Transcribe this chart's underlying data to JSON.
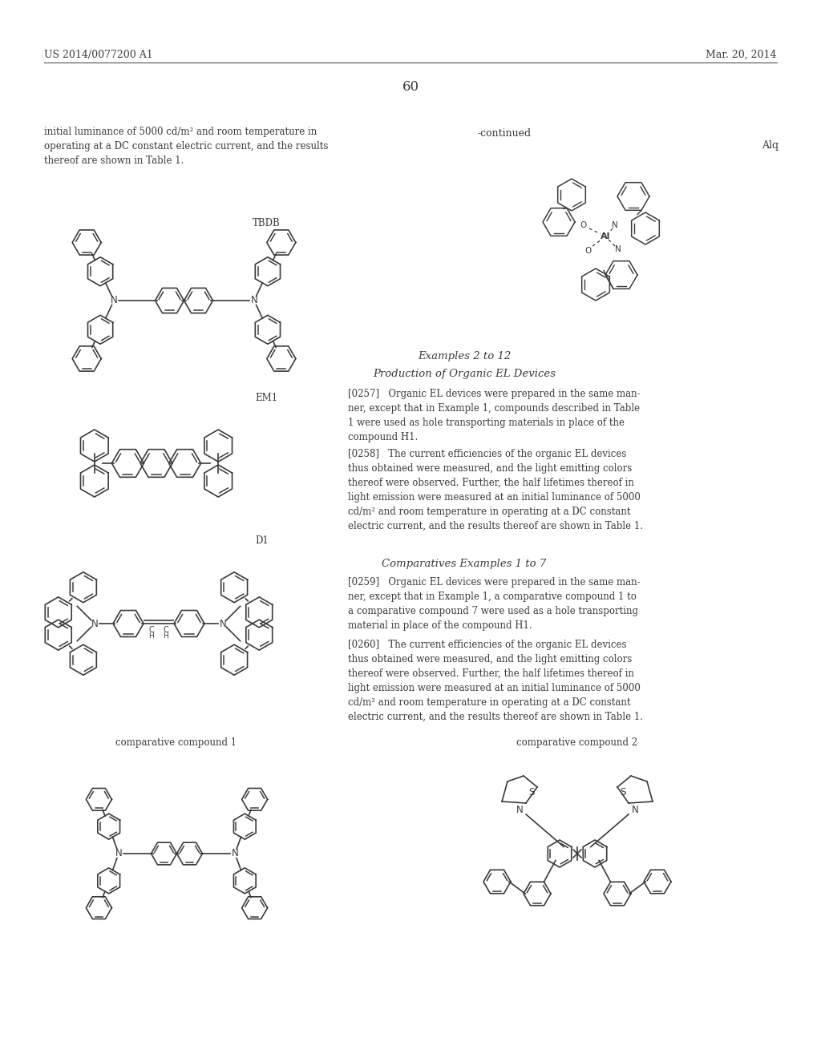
{
  "bg_color": "#ffffff",
  "header_left": "US 2014/0077200 A1",
  "header_right": "Mar. 20, 2014",
  "page_number": "60",
  "continued_label": "-continued",
  "alq_label": "Alq",
  "tbdb_label": "TBDB",
  "em1_label": "EM1",
  "d1_label": "D1",
  "comp1_label": "comparative compound 1",
  "comp2_label": "comparative compound 2",
  "text_block": "initial luminance of 5000 cd/m² and room temperature in\noperating at a DC constant electric current, and the results\nthereof are shown in Table 1.",
  "examples_header": "Examples 2 to 12",
  "production_header": "Production of Organic EL Devices",
  "para0257": "[0257]   Organic EL devices were prepared in the same man-\nner, except that in Example 1, compounds described in Table\n1 were used as hole transporting materials in place of the\ncompound H1.",
  "para0258": "[0258]   The current efficiencies of the organic EL devices\nthus obtained were measured, and the light emitting colors\nthereof were observed. Further, the half lifetimes thereof in\nlight emission were measured at an initial luminance of 5000\ncd/m² and room temperature in operating at a DC constant\nelectric current, and the results thereof are shown in Table 1.",
  "comparatives_header": "Comparatives Examples 1 to 7",
  "para0259": "[0259]   Organic EL devices were prepared in the same man-\nner, except that in Example 1, a comparative compound 1 to\na comparative compound 7 were used as a hole transporting\nmaterial in place of the compound H1.",
  "para0260": "[0260]   The current efficiencies of the organic EL devices\nthus obtained were measured, and the light emitting colors\nthereof were observed. Further, the half lifetimes thereof in\nlight emission were measured at an initial luminance of 5000\ncd/m² and room temperature in operating at a DC constant\nelectric current, and the results thereof are shown in Table 1."
}
